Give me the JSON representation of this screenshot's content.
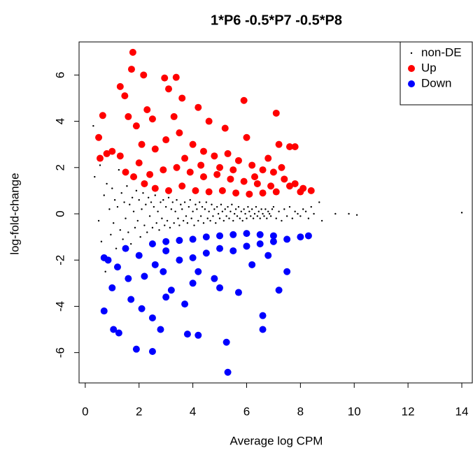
{
  "chart_data": {
    "type": "scatter",
    "title": "1*P6 -0.5*P7 -0.5*P8",
    "x_label": "Average log CPM",
    "y_label": "log-fold-change",
    "xlim": [
      -0.23,
      14.39
    ],
    "ylim": [
      -7.31,
      7.43
    ],
    "xticks": [
      0,
      2,
      4,
      6,
      8,
      10,
      12,
      14
    ],
    "yticks": [
      -6,
      -4,
      -2,
      0,
      2,
      4,
      6
    ],
    "legend": "topright",
    "series": [
      {
        "name": "non-DE",
        "color": "#000000",
        "marker_size": 1.2,
        "x": [
          0.3,
          0.35,
          0.5,
          0.55,
          0.6,
          0.7,
          0.75,
          0.8,
          0.9,
          0.95,
          1.0,
          1.05,
          1.1,
          1.15,
          1.2,
          1.25,
          1.3,
          1.35,
          1.4,
          1.45,
          1.5,
          1.55,
          1.6,
          1.65,
          1.7,
          1.75,
          1.8,
          1.85,
          1.9,
          1.95,
          2.0,
          2.05,
          2.1,
          2.15,
          2.2,
          2.25,
          2.3,
          2.35,
          2.4,
          2.45,
          2.5,
          2.55,
          2.6,
          2.65,
          2.7,
          2.75,
          2.8,
          2.85,
          2.9,
          2.95,
          3.0,
          3.05,
          3.1,
          3.15,
          3.2,
          3.25,
          3.3,
          3.35,
          3.4,
          3.45,
          3.5,
          3.55,
          3.6,
          3.65,
          3.7,
          3.75,
          3.8,
          3.85,
          3.9,
          3.95,
          4.0,
          4.05,
          4.1,
          4.15,
          4.2,
          4.25,
          4.3,
          4.35,
          4.4,
          4.45,
          4.5,
          4.55,
          4.6,
          4.65,
          4.7,
          4.75,
          4.8,
          4.85,
          4.9,
          4.95,
          5.0,
          5.05,
          5.1,
          5.15,
          5.2,
          5.25,
          5.3,
          5.35,
          5.4,
          5.45,
          5.5,
          5.55,
          5.6,
          5.65,
          5.7,
          5.75,
          5.8,
          5.85,
          5.9,
          5.95,
          6.0,
          6.05,
          6.1,
          6.15,
          6.2,
          6.25,
          6.3,
          6.35,
          6.4,
          6.45,
          6.5,
          6.55,
          6.6,
          6.65,
          6.7,
          6.75,
          6.8,
          6.85,
          6.9,
          6.95,
          7.0,
          7.1,
          7.2,
          7.3,
          7.4,
          7.5,
          7.6,
          7.7,
          7.8,
          7.9,
          8.0,
          8.1,
          8.2,
          8.3,
          8.4,
          8.5,
          8.7,
          8.8,
          9.3,
          9.8,
          10.1,
          14.0
        ],
        "values": [
          3.8,
          1.6,
          -0.3,
          2.1,
          -1.2,
          0.8,
          -2.5,
          1.3,
          0.2,
          -0.9,
          1.1,
          -0.4,
          0.6,
          -1.5,
          0.3,
          1.9,
          -0.7,
          0.9,
          -1.1,
          0.5,
          -0.2,
          1.2,
          -0.8,
          0.4,
          -1.3,
          0.7,
          0.1,
          -0.6,
          1.0,
          -0.3,
          0.6,
          -1.0,
          0.2,
          0.9,
          -0.5,
          0.4,
          -0.8,
          0.7,
          -0.1,
          0.5,
          -0.6,
          0.3,
          0.8,
          -0.4,
          0.1,
          -0.7,
          0.5,
          -0.2,
          0.6,
          -0.5,
          0.3,
          -0.3,
          0.7,
          -0.6,
          0.2,
          0.5,
          -0.4,
          0.1,
          0.6,
          -0.2,
          -0.5,
          0.4,
          0.2,
          -0.3,
          0.5,
          -0.1,
          -0.4,
          0.3,
          0.6,
          -0.2,
          0.1,
          -0.5,
          0.4,
          0.2,
          -0.3,
          0.5,
          -0.1,
          0.3,
          -0.4,
          0.2,
          0.5,
          -0.2,
          0.1,
          -0.3,
          0.4,
          -0.1,
          0.2,
          -0.4,
          0.3,
          0.0,
          -0.2,
          0.4,
          0.1,
          -0.3,
          0.2,
          -0.1,
          0.3,
          -0.2,
          0.1,
          0.4,
          -0.3,
          0.0,
          0.2,
          -0.1,
          0.3,
          -0.2,
          0.1,
          -0.3,
          0.2,
          0.0,
          -0.2,
          0.3,
          0.1,
          -0.1,
          0.2,
          -0.2,
          0.0,
          0.3,
          -0.1,
          0.1,
          -0.2,
          0.2,
          0.0,
          -0.1,
          0.2,
          -0.2,
          0.1,
          0.0,
          -0.1,
          0.2,
          0.3,
          -0.2,
          0.1,
          -0.3,
          0.2,
          -0.1,
          0.3,
          -0.2,
          0.1,
          0.0,
          -0.1,
          0.2,
          0.1,
          -0.2,
          0.3,
          0.0,
          0.5,
          -0.3,
          0.0,
          0.0,
          -0.05,
          0.05
        ]
      },
      {
        "name": "Up",
        "color": "#ff0000",
        "marker_size": 5,
        "x": [
          1.77,
          1.72,
          2.17,
          2.95,
          3.38,
          1.3,
          1.47,
          3.1,
          3.6,
          5.9,
          7.1,
          4.2,
          2.3,
          1.6,
          0.65,
          0.5,
          0.55,
          0.8,
          1.0,
          1.9,
          2.5,
          3.3,
          4.6,
          5.2,
          6.0,
          7.2,
          7.6,
          7.8,
          1.3,
          1.5,
          2.0,
          2.6,
          3.0,
          3.5,
          4.0,
          4.4,
          4.8,
          5.3,
          5.7,
          6.2,
          6.6,
          7.0,
          7.4,
          7.8,
          8.1,
          8.4,
          8.0,
          7.6,
          2.2,
          2.6,
          3.1,
          3.6,
          4.1,
          4.6,
          5.1,
          5.6,
          6.1,
          6.6,
          7.1,
          2.4,
          2.9,
          3.4,
          3.9,
          4.4,
          4.9,
          5.4,
          5.9,
          6.4,
          6.9,
          1.8,
          2.1,
          3.7,
          4.3,
          5.0,
          5.5,
          6.3,
          6.8,
          7.3
        ],
        "values": [
          6.98,
          6.25,
          6.0,
          5.87,
          5.9,
          5.5,
          5.1,
          5.4,
          5.0,
          4.9,
          4.35,
          4.6,
          4.5,
          4.2,
          4.25,
          3.3,
          2.4,
          2.6,
          2.7,
          3.8,
          4.1,
          4.2,
          4.0,
          3.7,
          3.3,
          3.0,
          2.9,
          2.9,
          2.5,
          1.8,
          2.2,
          2.8,
          3.2,
          3.5,
          3.0,
          2.7,
          2.5,
          2.6,
          2.3,
          2.1,
          1.9,
          1.8,
          1.5,
          1.3,
          1.1,
          1.0,
          0.95,
          1.2,
          1.3,
          1.1,
          1.0,
          1.2,
          1.0,
          0.95,
          1.0,
          0.9,
          0.85,
          0.9,
          0.95,
          1.7,
          1.9,
          2.0,
          1.8,
          1.6,
          1.7,
          1.5,
          1.4,
          1.3,
          1.2,
          1.6,
          3.0,
          2.4,
          2.1,
          2.0,
          1.9,
          1.6,
          2.4,
          2.0
        ]
      },
      {
        "name": "Down",
        "color": "#0000ff",
        "marker_size": 5,
        "x": [
          5.3,
          2.5,
          1.9,
          5.25,
          1.05,
          1.25,
          3.8,
          4.2,
          2.8,
          6.6,
          0.7,
          6.6,
          2.1,
          2.5,
          3.0,
          1.7,
          1.0,
          1.6,
          0.7,
          0.85,
          2.2,
          3.2,
          4.0,
          5.0,
          5.7,
          7.2,
          7.5,
          1.2,
          2.0,
          2.6,
          3.0,
          3.5,
          4.0,
          4.5,
          5.0,
          5.5,
          6.0,
          6.5,
          7.0,
          7.5,
          8.0,
          8.3,
          2.5,
          3.0,
          3.5,
          4.0,
          4.5,
          5.0,
          5.5,
          6.0,
          6.5,
          7.0,
          1.5,
          4.2,
          6.2,
          6.8,
          3.7,
          4.8,
          2.9
        ],
        "values": [
          -6.85,
          -5.95,
          -5.85,
          -5.55,
          -5.0,
          -5.15,
          -5.2,
          -5.25,
          -5.0,
          -5.0,
          -4.2,
          -4.4,
          -4.1,
          -4.5,
          -3.6,
          -3.7,
          -3.2,
          -2.8,
          -1.9,
          -2.0,
          -2.7,
          -3.3,
          -3.0,
          -3.2,
          -3.4,
          -3.3,
          -2.5,
          -2.3,
          -1.8,
          -2.2,
          -1.6,
          -2.0,
          -1.9,
          -1.7,
          -1.5,
          -1.6,
          -1.4,
          -1.3,
          -1.2,
          -1.1,
          -1.0,
          -0.95,
          -1.3,
          -1.2,
          -1.15,
          -1.1,
          -1.0,
          -0.95,
          -0.9,
          -0.85,
          -0.9,
          -0.95,
          -1.5,
          -2.5,
          -2.2,
          -1.8,
          -3.9,
          -2.8,
          -2.5
        ]
      }
    ]
  }
}
